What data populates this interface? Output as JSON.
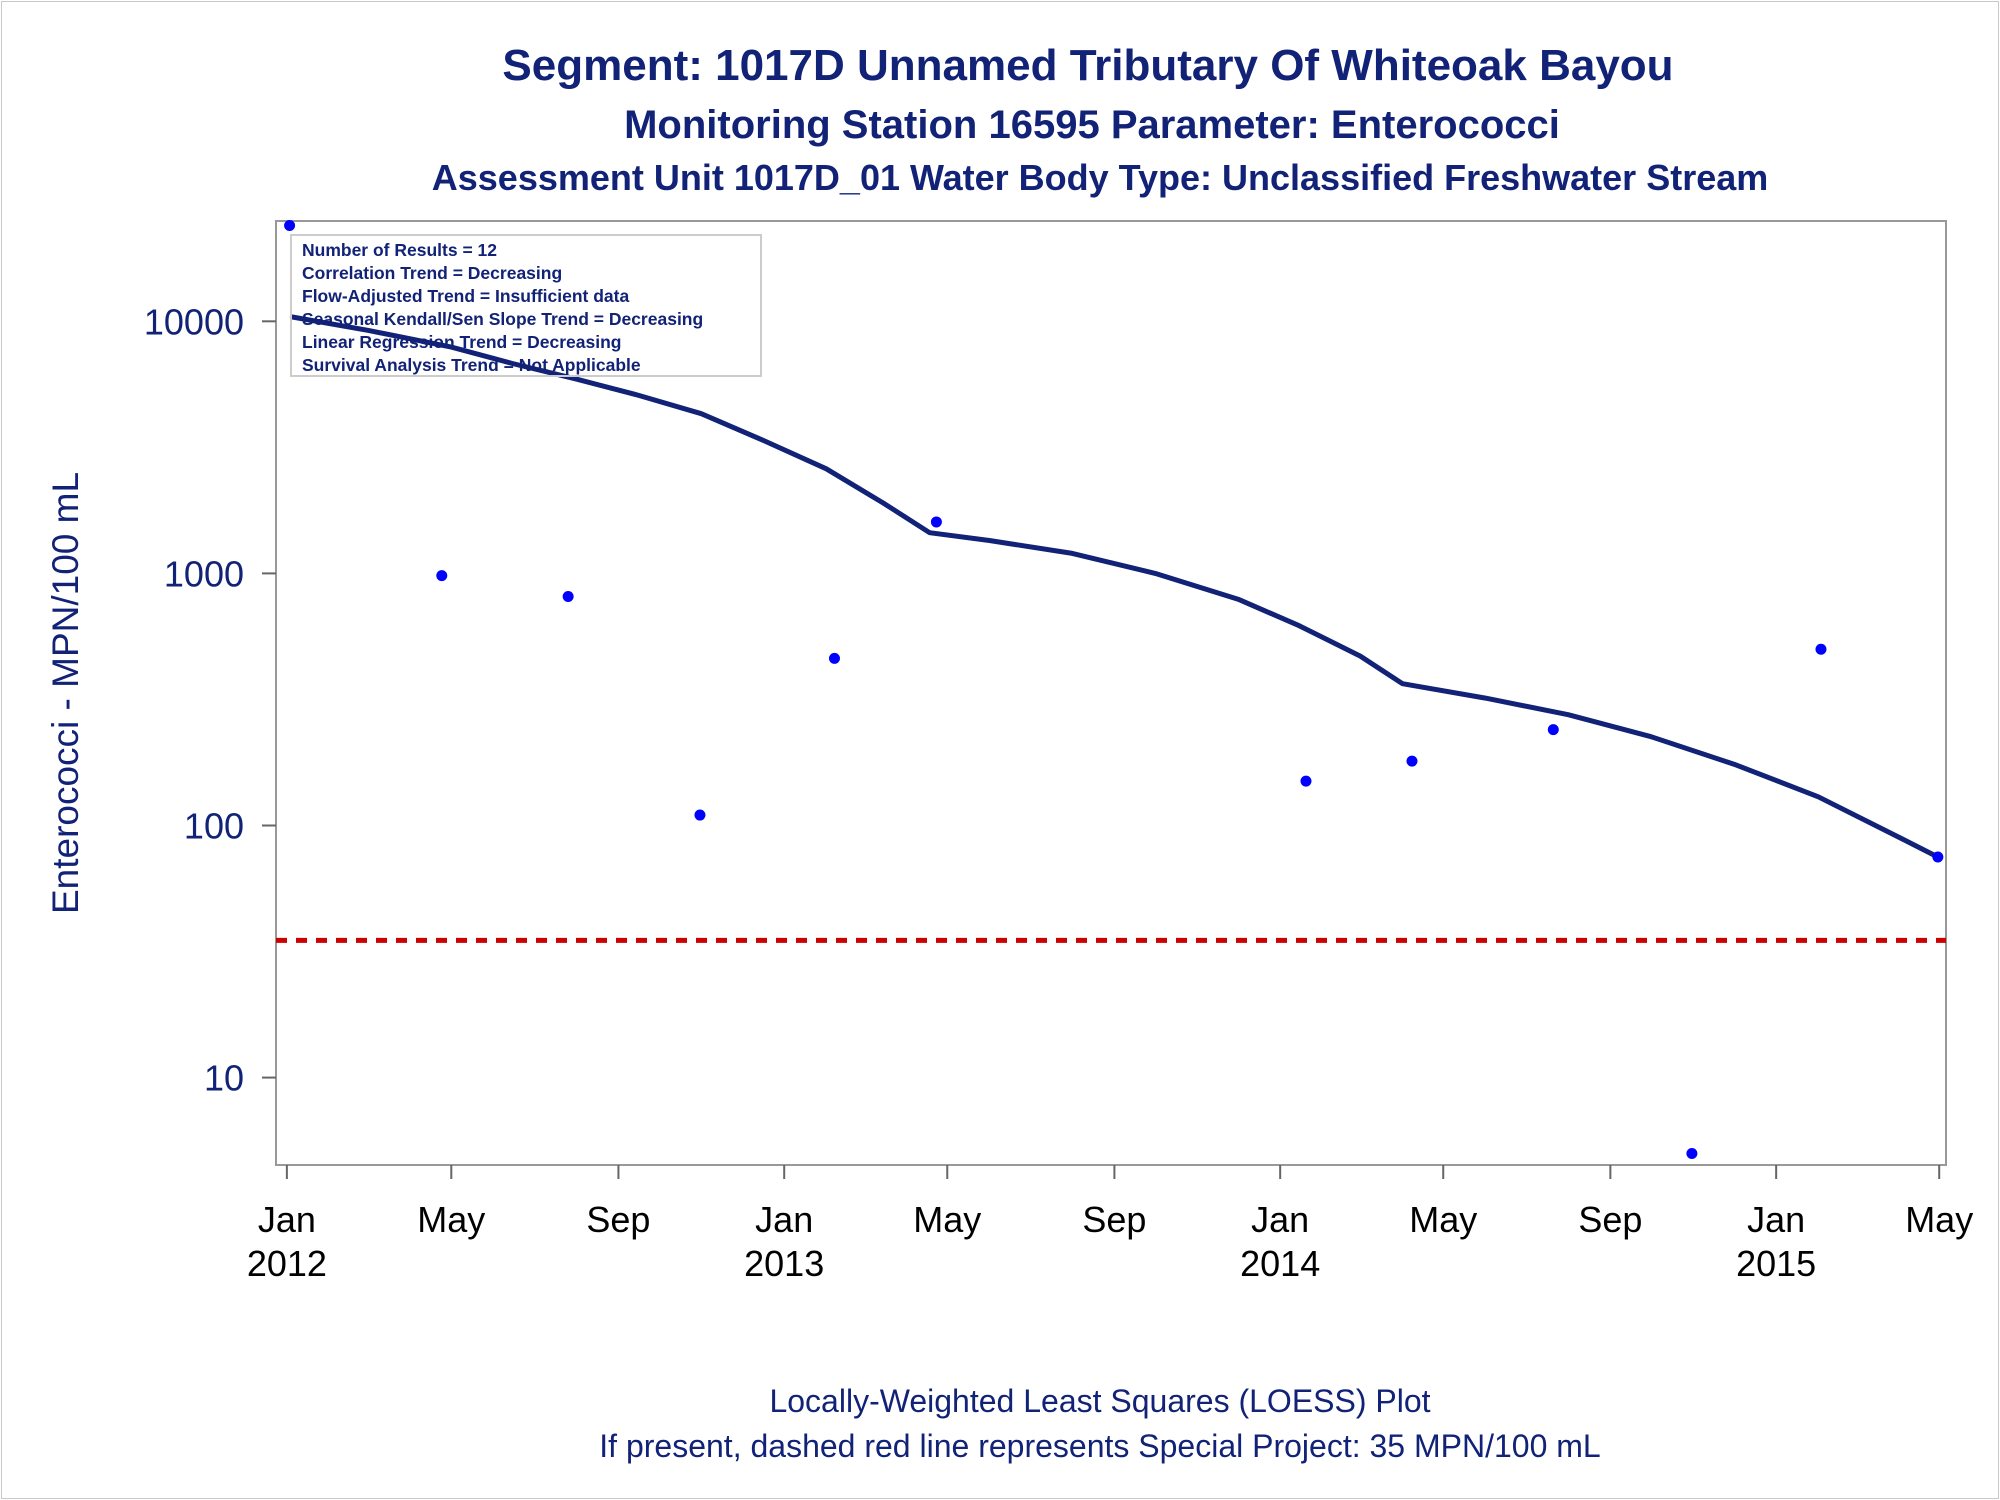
{
  "chart_data": {
    "type": "scatter",
    "title": "Segment: 1017D  Unnamed Tributary Of Whiteoak Bayou",
    "subtitle": "Monitoring Station 16595 Parameter: Enterococci",
    "subtitle2": "Assessment Unit 1017D_01   Water Body Type: Unclassified Freshwater Stream",
    "ylabel": "Enterococci - MPN/100 mL",
    "y_scale": "log",
    "ylim": [
      4.5,
      25000
    ],
    "xlim": [
      "2011-12-24",
      "2015-05-06"
    ],
    "y_ticks": [
      {
        "value": 10,
        "label": "10"
      },
      {
        "value": 100,
        "label": "100"
      },
      {
        "value": 1000,
        "label": "1000"
      },
      {
        "value": 10000,
        "label": "10000"
      }
    ],
    "x_ticks": [
      {
        "date": "2012-01-01",
        "line1": "Jan",
        "line2": "2012"
      },
      {
        "date": "2012-05-01",
        "line1": "May",
        "line2": ""
      },
      {
        "date": "2012-09-01",
        "line1": "Sep",
        "line2": ""
      },
      {
        "date": "2013-01-01",
        "line1": "Jan",
        "line2": "2013"
      },
      {
        "date": "2013-05-01",
        "line1": "May",
        "line2": ""
      },
      {
        "date": "2013-09-01",
        "line1": "Sep",
        "line2": ""
      },
      {
        "date": "2014-01-01",
        "line1": "Jan",
        "line2": "2014"
      },
      {
        "date": "2014-05-01",
        "line1": "May",
        "line2": ""
      },
      {
        "date": "2014-09-01",
        "line1": "Sep",
        "line2": ""
      },
      {
        "date": "2015-01-01",
        "line1": "Jan",
        "line2": "2015"
      },
      {
        "date": "2015-05-01",
        "line1": "May",
        "line2": ""
      }
    ],
    "points": [
      {
        "x": "2012-01-03",
        "y": 24000
      },
      {
        "x": "2012-04-24",
        "y": 980
      },
      {
        "x": "2012-07-26",
        "y": 810
      },
      {
        "x": "2012-10-31",
        "y": 110
      },
      {
        "x": "2013-02-07",
        "y": 460
      },
      {
        "x": "2013-04-23",
        "y": 1600
      },
      {
        "x": "2014-01-20",
        "y": 150
      },
      {
        "x": "2014-04-08",
        "y": 180
      },
      {
        "x": "2014-07-21",
        "y": 240
      },
      {
        "x": "2014-10-31",
        "y": 5
      },
      {
        "x": "2015-02-03",
        "y": 500
      },
      {
        "x": "2015-04-30",
        "y": 75
      }
    ],
    "loess": [
      {
        "x": "2012-01-05",
        "y": 10400
      },
      {
        "x": "2012-03-01",
        "y": 9200
      },
      {
        "x": "2012-05-01",
        "y": 7900
      },
      {
        "x": "2012-06-15",
        "y": 6800
      },
      {
        "x": "2012-08-01",
        "y": 5900
      },
      {
        "x": "2012-09-15",
        "y": 5100
      },
      {
        "x": "2012-11-01",
        "y": 4300
      },
      {
        "x": "2012-12-15",
        "y": 3400
      },
      {
        "x": "2013-02-01",
        "y": 2600
      },
      {
        "x": "2013-03-15",
        "y": 1900
      },
      {
        "x": "2013-04-18",
        "y": 1450
      },
      {
        "x": "2013-06-01",
        "y": 1350
      },
      {
        "x": "2013-08-01",
        "y": 1200
      },
      {
        "x": "2013-10-01",
        "y": 1000
      },
      {
        "x": "2013-12-01",
        "y": 790
      },
      {
        "x": "2014-01-15",
        "y": 620
      },
      {
        "x": "2014-03-01",
        "y": 470
      },
      {
        "x": "2014-04-01",
        "y": 365
      },
      {
        "x": "2014-06-01",
        "y": 320
      },
      {
        "x": "2014-08-01",
        "y": 275
      },
      {
        "x": "2014-10-01",
        "y": 225
      },
      {
        "x": "2014-12-01",
        "y": 175
      },
      {
        "x": "2015-02-01",
        "y": 130
      },
      {
        "x": "2015-04-01",
        "y": 90
      },
      {
        "x": "2015-04-30",
        "y": 75
      }
    ],
    "reference_line": {
      "y": 35,
      "color": "#cc0000",
      "style": "dashed"
    },
    "colors": {
      "text": "#112277",
      "point": "#0000ff",
      "loess": "#112277",
      "reference": "#cc0000",
      "frame": "#999999"
    },
    "grid": false,
    "legend_placement": "top-left",
    "stats": [
      "Number of Results = 12",
      "Correlation Trend = Decreasing",
      "Flow-Adjusted Trend = Insufficient data",
      "Seasonal Kendall/Sen Slope Trend = Decreasing",
      "Linear Regression Trend = Decreasing",
      "Survival Analysis Trend = Not Applicable"
    ],
    "footnote1": "Locally-Weighted Least Squares (LOESS) Plot",
    "footnote2": "If present, dashed red line represents Special Project: 35 MPN/100 mL"
  }
}
